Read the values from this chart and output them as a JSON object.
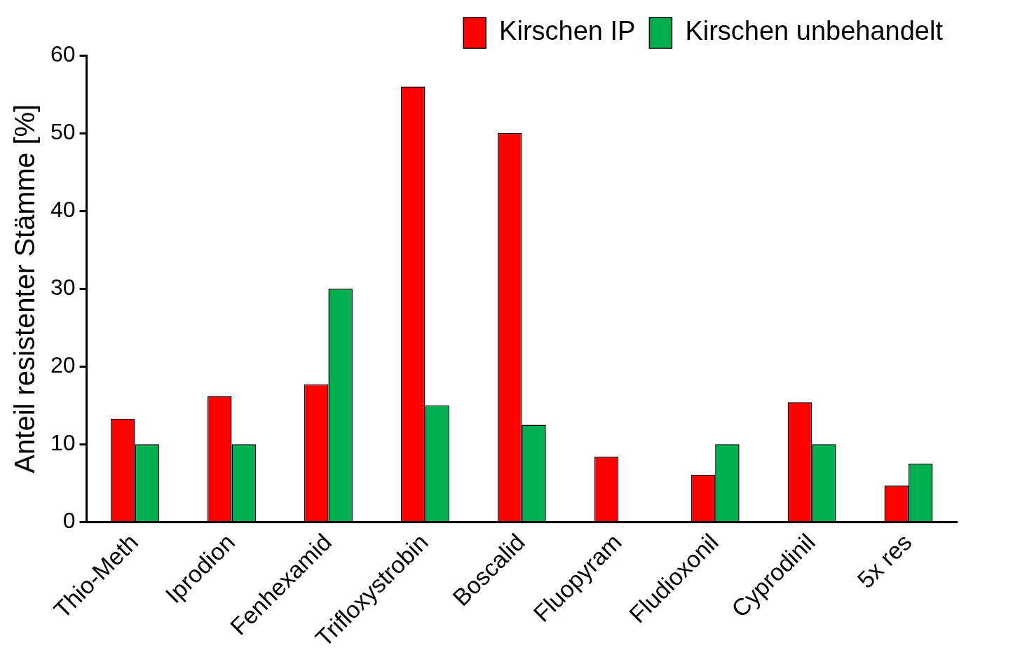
{
  "chart_data": {
    "type": "bar",
    "ylabel": "Anteil resistenter Stämme [%]",
    "categories": [
      "Thio-Meth",
      "Iprodion",
      "Fenhexamid",
      "Trifloxystrobin",
      "Boscalid",
      "Fluopyram",
      "Fludioxonil",
      "Cyprodinil",
      "5x res"
    ],
    "series": [
      {
        "name": "Kirschen IP",
        "color": "#ff0000",
        "values": [
          13.3,
          16.2,
          17.7,
          56,
          50,
          8.4,
          6.1,
          15.4,
          4.7
        ]
      },
      {
        "name": "Kirschen unbehandelt",
        "color": "#00b050",
        "values": [
          10,
          10,
          30,
          15,
          12.5,
          0,
          10,
          10,
          7.5
        ]
      }
    ],
    "ylim": [
      0,
      60
    ],
    "yticks": [
      0,
      10,
      20,
      30,
      40,
      50,
      60
    ],
    "grid": false,
    "legend": "top right"
  }
}
